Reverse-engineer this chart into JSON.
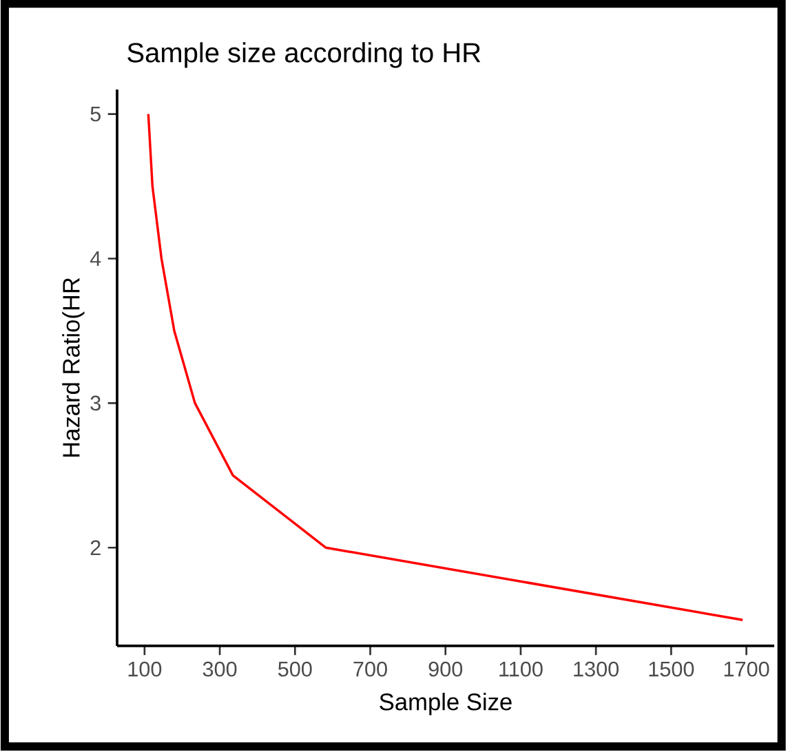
{
  "chart_data": {
    "type": "line",
    "title": "Sample size according to HR",
    "xlabel": "Sample Size",
    "ylabel": "Hazard Ratio(HR",
    "x": [
      110,
      121,
      145,
      179,
      234,
      335,
      582,
      1690
    ],
    "series": [
      {
        "color": "#ff0000",
        "values": [
          5,
          4.5,
          4,
          3.5,
          3,
          2.5,
          2,
          1.5
        ]
      }
    ],
    "xlim": [
      27,
      1774
    ],
    "ylim": [
      1.32,
      5.17
    ],
    "xticks": [
      100,
      300,
      500,
      700,
      900,
      1100,
      1300,
      1500,
      1700
    ],
    "yticks": [
      2,
      3,
      4,
      5
    ],
    "grid": false,
    "marker": "none",
    "line_style": "solid"
  }
}
